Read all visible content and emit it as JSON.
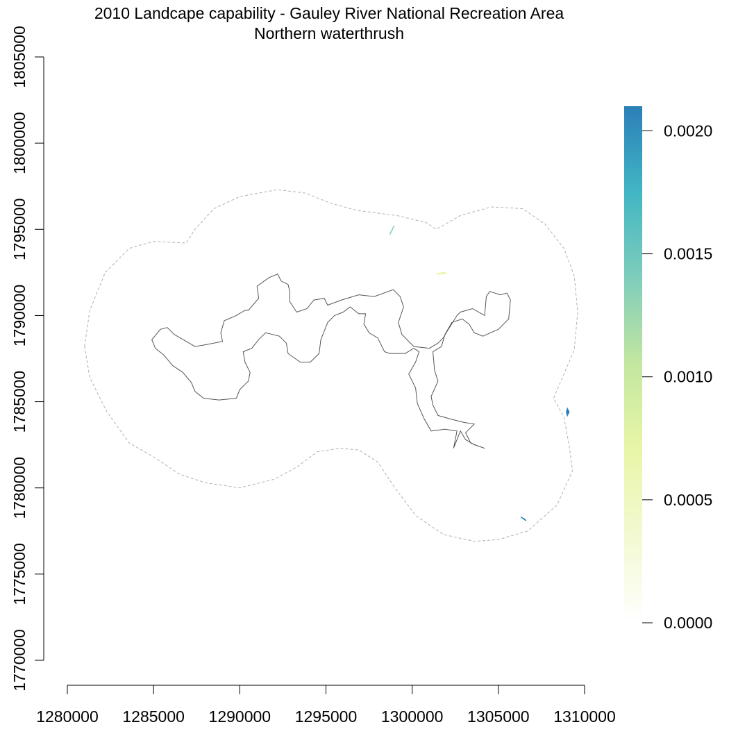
{
  "title": {
    "line1": "2010 Landcape capability - Gauley River National Recreation Area",
    "line2": "Northern waterthrush"
  },
  "map_data": {
    "x_axis": {
      "ticks": [
        1280000,
        1285000,
        1290000,
        1295000,
        1300000,
        1305000,
        1310000
      ],
      "labels": [
        "1280000",
        "1285000",
        "1290000",
        "1295000",
        "1300000",
        "1305000",
        "1310000"
      ]
    },
    "y_axis": {
      "ticks": [
        1770000,
        1775000,
        1780000,
        1785000,
        1790000,
        1795000,
        1800000,
        1805000
      ],
      "labels": [
        "1770000",
        "1775000",
        "1780000",
        "1785000",
        "1790000",
        "1795000",
        "1800000",
        "1805000"
      ]
    },
    "legend": {
      "ticks": [
        0,
        0.0005,
        0.001,
        0.0015,
        0.002
      ],
      "labels": [
        "0.0000",
        "0.0005",
        "0.0010",
        "0.0015",
        "0.0020"
      ],
      "range": [
        0,
        0.0021
      ],
      "colors": [
        "#ffffff",
        "#f3f9d2",
        "#e8f6a8",
        "#c4e7a0",
        "#7fcdbb",
        "#41b6c4",
        "#2c7fb8"
      ]
    },
    "colors": {
      "buffer_outline": "#b0b0b0",
      "park_outline": "#555555"
    },
    "buffer_boundary": [
      [
        1281000,
        1788200
      ],
      [
        1281300,
        1790300
      ],
      [
        1282200,
        1792500
      ],
      [
        1283600,
        1793900
      ],
      [
        1285000,
        1794300
      ],
      [
        1286900,
        1794200
      ],
      [
        1287400,
        1795000
      ],
      [
        1288500,
        1796200
      ],
      [
        1290000,
        1796900
      ],
      [
        1292200,
        1797300
      ],
      [
        1293800,
        1797100
      ],
      [
        1295300,
        1796500
      ],
      [
        1296800,
        1796100
      ],
      [
        1299100,
        1795800
      ],
      [
        1300800,
        1795400
      ],
      [
        1301400,
        1795000
      ],
      [
        1302800,
        1795800
      ],
      [
        1304600,
        1796300
      ],
      [
        1306400,
        1796200
      ],
      [
        1307700,
        1795300
      ],
      [
        1308800,
        1793900
      ],
      [
        1309400,
        1792300
      ],
      [
        1309600,
        1790200
      ],
      [
        1309400,
        1788000
      ],
      [
        1308800,
        1786600
      ],
      [
        1308200,
        1785200
      ],
      [
        1308800,
        1784100
      ],
      [
        1309100,
        1782500
      ],
      [
        1309300,
        1781000
      ],
      [
        1308400,
        1779000
      ],
      [
        1306700,
        1777500
      ],
      [
        1305000,
        1777000
      ],
      [
        1303600,
        1776900
      ],
      [
        1301800,
        1777300
      ],
      [
        1300200,
        1778400
      ],
      [
        1299000,
        1780000
      ],
      [
        1298000,
        1781500
      ],
      [
        1296900,
        1782200
      ],
      [
        1295800,
        1782300
      ],
      [
        1294500,
        1782100
      ],
      [
        1293300,
        1781200
      ],
      [
        1292000,
        1780500
      ],
      [
        1290000,
        1780000
      ],
      [
        1288000,
        1780300
      ],
      [
        1286500,
        1780800
      ],
      [
        1285000,
        1781800
      ],
      [
        1283600,
        1782600
      ],
      [
        1282300,
        1784400
      ],
      [
        1281300,
        1786400
      ],
      [
        1281000,
        1788200
      ]
    ],
    "park_boundary": [
      [
        1284900,
        1788600
      ],
      [
        1285400,
        1789200
      ],
      [
        1285800,
        1789300
      ],
      [
        1286200,
        1788900
      ],
      [
        1287400,
        1788200
      ],
      [
        1288000,
        1788300
      ],
      [
        1289000,
        1788500
      ],
      [
        1288900,
        1789000
      ],
      [
        1289100,
        1789700
      ],
      [
        1289800,
        1790000
      ],
      [
        1290300,
        1790300
      ],
      [
        1290500,
        1790300
      ],
      [
        1291100,
        1791000
      ],
      [
        1291000,
        1791700
      ],
      [
        1291700,
        1792200
      ],
      [
        1292200,
        1792400
      ],
      [
        1292400,
        1792000
      ],
      [
        1292800,
        1791800
      ],
      [
        1292900,
        1791400
      ],
      [
        1292900,
        1790800
      ],
      [
        1293300,
        1790200
      ],
      [
        1293900,
        1790400
      ],
      [
        1294300,
        1790900
      ],
      [
        1294900,
        1791000
      ],
      [
        1295100,
        1790600
      ],
      [
        1295900,
        1790900
      ],
      [
        1296900,
        1791200
      ],
      [
        1297800,
        1791100
      ],
      [
        1298900,
        1791500
      ],
      [
        1299300,
        1791100
      ],
      [
        1299500,
        1790500
      ],
      [
        1299200,
        1789600
      ],
      [
        1299400,
        1788900
      ],
      [
        1300100,
        1788200
      ],
      [
        1301000,
        1788100
      ],
      [
        1301500,
        1788400
      ],
      [
        1301800,
        1788700
      ],
      [
        1302100,
        1789200
      ],
      [
        1302600,
        1790000
      ],
      [
        1302800,
        1790200
      ],
      [
        1303500,
        1790400
      ],
      [
        1304200,
        1790000
      ],
      [
        1304300,
        1791100
      ],
      [
        1304500,
        1791400
      ],
      [
        1305100,
        1791200
      ],
      [
        1305500,
        1791300
      ],
      [
        1305700,
        1790900
      ],
      [
        1305600,
        1789800
      ],
      [
        1305000,
        1789200
      ],
      [
        1304100,
        1788800
      ],
      [
        1303600,
        1789000
      ],
      [
        1303300,
        1789500
      ],
      [
        1302900,
        1789800
      ],
      [
        1302300,
        1789600
      ],
      [
        1301900,
        1788900
      ],
      [
        1301700,
        1788200
      ],
      [
        1301200,
        1787900
      ],
      [
        1301300,
        1786800
      ],
      [
        1301500,
        1786200
      ],
      [
        1301100,
        1785300
      ],
      [
        1301200,
        1784800
      ],
      [
        1301500,
        1784200
      ],
      [
        1302200,
        1784000
      ],
      [
        1303000,
        1783800
      ],
      [
        1303600,
        1783700
      ],
      [
        1303100,
        1783200
      ],
      [
        1303400,
        1782600
      ],
      [
        1303900,
        1782400
      ],
      [
        1304200,
        1782300
      ],
      [
        1303600,
        1782500
      ],
      [
        1303100,
        1782800
      ],
      [
        1302800,
        1783300
      ],
      [
        1302400,
        1782300
      ],
      [
        1302600,
        1783300
      ],
      [
        1301900,
        1783400
      ],
      [
        1301100,
        1783300
      ],
      [
        1300700,
        1784000
      ],
      [
        1300300,
        1784900
      ],
      [
        1300200,
        1785800
      ],
      [
        1299800,
        1786600
      ],
      [
        1300200,
        1787300
      ],
      [
        1300400,
        1787900
      ],
      [
        1300100,
        1788100
      ],
      [
        1299600,
        1787800
      ],
      [
        1298700,
        1787800
      ],
      [
        1298400,
        1787900
      ],
      [
        1298000,
        1788700
      ],
      [
        1297500,
        1789000
      ],
      [
        1297200,
        1789500
      ],
      [
        1297300,
        1790100
      ],
      [
        1296900,
        1790100
      ],
      [
        1296400,
        1790500
      ],
      [
        1296000,
        1790200
      ],
      [
        1295500,
        1790000
      ],
      [
        1295100,
        1789600
      ],
      [
        1294700,
        1788600
      ],
      [
        1294600,
        1787800
      ],
      [
        1294100,
        1787300
      ],
      [
        1293500,
        1787300
      ],
      [
        1292800,
        1787800
      ],
      [
        1292700,
        1788400
      ],
      [
        1292300,
        1788800
      ],
      [
        1291500,
        1789000
      ],
      [
        1291100,
        1788600
      ],
      [
        1290700,
        1788100
      ],
      [
        1290200,
        1787900
      ],
      [
        1290300,
        1787300
      ],
      [
        1290600,
        1786700
      ],
      [
        1290500,
        1786200
      ],
      [
        1290000,
        1785700
      ],
      [
        1289800,
        1785200
      ],
      [
        1288800,
        1785100
      ],
      [
        1287900,
        1785200
      ],
      [
        1287400,
        1785600
      ],
      [
        1287200,
        1786100
      ],
      [
        1286700,
        1786700
      ],
      [
        1286100,
        1787100
      ],
      [
        1285600,
        1787700
      ],
      [
        1285100,
        1788100
      ],
      [
        1284900,
        1788600
      ]
    ],
    "raster_patches": [
      {
        "points": [
          [
            1298800,
            1794900
          ],
          [
            1298950,
            1795200
          ],
          [
            1298850,
            1795000
          ],
          [
            1298700,
            1794700
          ]
        ],
        "color": "#7fcdbb"
      },
      {
        "points": [
          [
            1309000,
            1784600
          ],
          [
            1309100,
            1784400
          ],
          [
            1309000,
            1784200
          ],
          [
            1308950,
            1784400
          ]
        ],
        "color": "#2c7fb8"
      },
      {
        "points": [
          [
            1306300,
            1778300
          ],
          [
            1306500,
            1778200
          ],
          [
            1306600,
            1778100
          ],
          [
            1306400,
            1778250
          ]
        ],
        "color": "#2c7fb8"
      },
      {
        "points": [
          [
            1301400,
            1792400
          ],
          [
            1301800,
            1792500
          ],
          [
            1302000,
            1792450
          ]
        ],
        "color": "#e8f6a8"
      }
    ]
  }
}
